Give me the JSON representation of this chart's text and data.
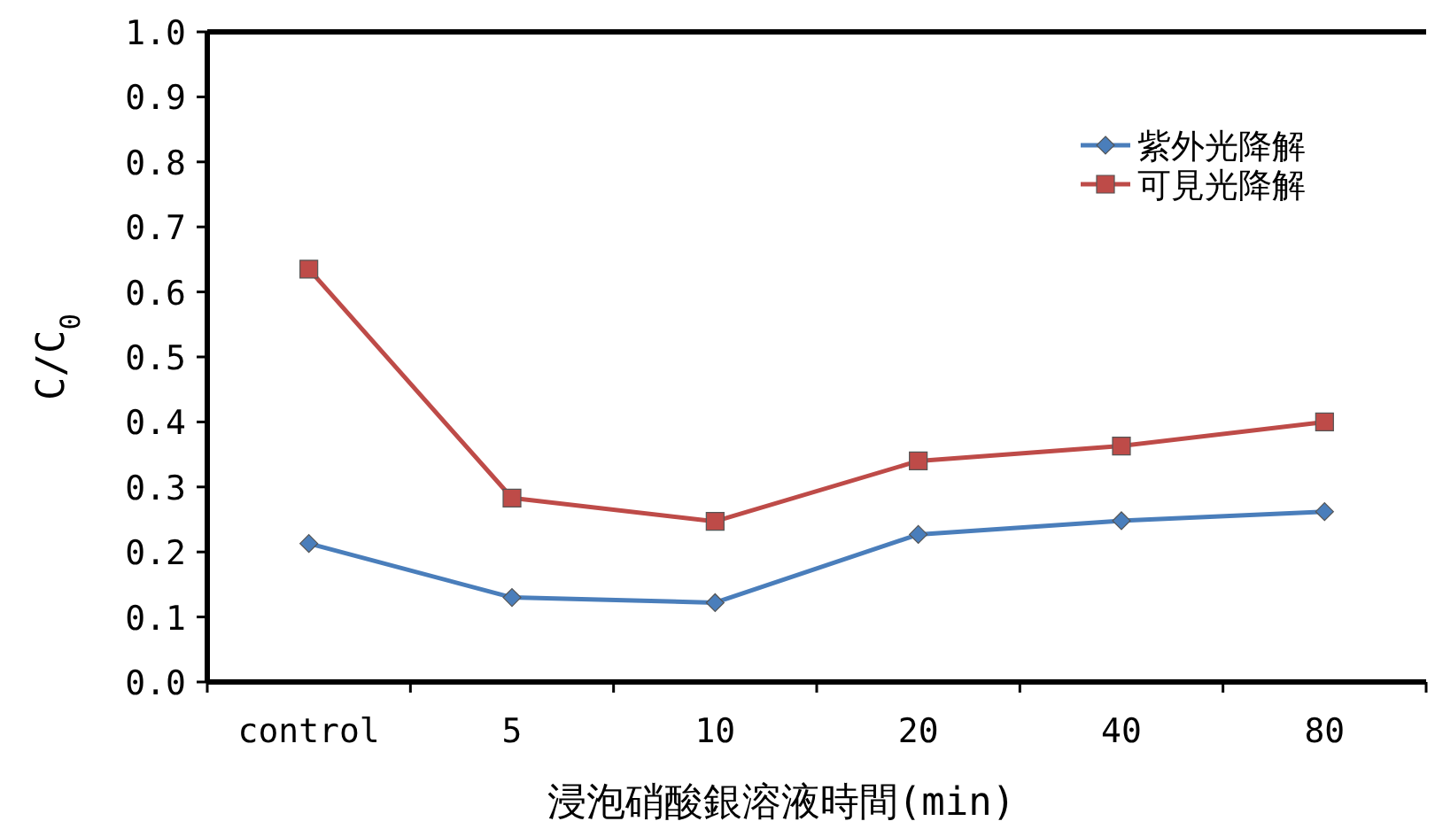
{
  "chart_data": {
    "type": "line",
    "xlabel": "浸泡硝酸銀溶液時間(min)",
    "ylabel": "C/C$_{0}$",
    "categories": [
      "control",
      "5",
      "10",
      "20",
      "40",
      "80"
    ],
    "series": [
      {
        "name": "紫外光降解",
        "color": "#4a7ebb",
        "marker": "diamond",
        "values": [
          0.213,
          0.13,
          0.122,
          0.227,
          0.248,
          0.262
        ]
      },
      {
        "name": "可見光降解",
        "color": "#be4b48",
        "marker": "square",
        "values": [
          0.635,
          0.283,
          0.247,
          0.34,
          0.363,
          0.4
        ]
      }
    ],
    "ylim": [
      0,
      1
    ],
    "yticks": [
      {
        "value": 0,
        "label": "0.0"
      },
      0.1,
      0.2,
      0.3,
      0.4,
      0.5,
      0.6,
      0.7,
      0.8,
      0.9,
      {
        "value": 1,
        "label": "1.0"
      }
    ],
    "legend": "top right",
    "line_style": "solid"
  }
}
